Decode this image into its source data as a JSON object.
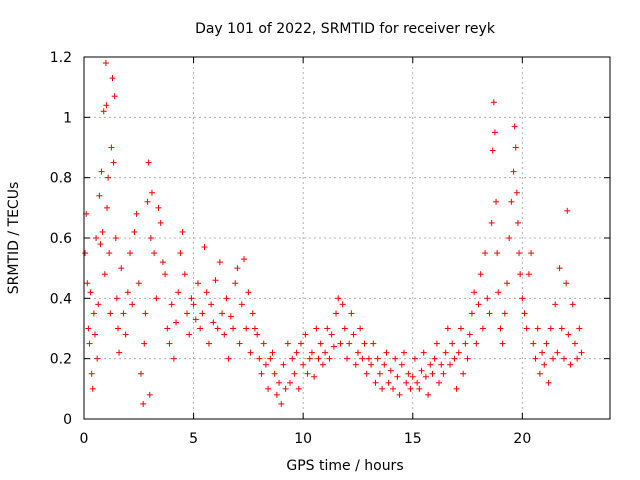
{
  "chart_data": {
    "type": "scatter",
    "title": "Day 101 of 2022, SRMTID for receiver reyk",
    "xlabel": "GPS time / hours",
    "ylabel": "SRMTID / TECUs",
    "xlim": [
      0,
      24
    ],
    "ylim": [
      0,
      1.2
    ],
    "xticks": [
      0,
      5,
      10,
      15,
      20
    ],
    "xtick_labels": [
      "0",
      "5",
      "10",
      "15",
      "20"
    ],
    "yticks": [
      0,
      0.2,
      0.4,
      0.6,
      0.8,
      1,
      1.2
    ],
    "ytick_labels": [
      "0",
      "0.2",
      "0.4",
      "0.6",
      "0.8",
      "1",
      "1.2"
    ],
    "grid": true,
    "legend": "none",
    "series": [
      {
        "name": "SRMTID",
        "color": "#ff0000",
        "marker": "plus",
        "points": [
          [
            0.05,
            0.55
          ],
          [
            0.1,
            0.68
          ],
          [
            0.15,
            0.45
          ],
          [
            0.2,
            0.3
          ],
          [
            0.25,
            0.25
          ],
          [
            0.3,
            0.42
          ],
          [
            0.35,
            0.15
          ],
          [
            0.4,
            0.1
          ],
          [
            0.45,
            0.35
          ],
          [
            0.5,
            0.28
          ],
          [
            0.55,
            0.6
          ],
          [
            0.6,
            0.2
          ],
          [
            0.65,
            0.38
          ],
          [
            0.7,
            0.74
          ],
          [
            0.75,
            0.58
          ],
          [
            0.8,
            0.82
          ],
          [
            0.85,
            0.62
          ],
          [
            0.9,
            1.02
          ],
          [
            0.95,
            0.48
          ],
          [
            1.0,
            1.18
          ],
          [
            1.02,
            1.04
          ],
          [
            1.05,
            0.7
          ],
          [
            1.1,
            0.8
          ],
          [
            1.15,
            0.55
          ],
          [
            1.2,
            0.35
          ],
          [
            1.25,
            0.9
          ],
          [
            1.3,
            1.13
          ],
          [
            1.35,
            0.85
          ],
          [
            1.4,
            1.07
          ],
          [
            1.45,
            0.6
          ],
          [
            1.5,
            0.4
          ],
          [
            1.55,
            0.3
          ],
          [
            1.6,
            0.22
          ],
          [
            1.7,
            0.5
          ],
          [
            1.8,
            0.35
          ],
          [
            1.9,
            0.28
          ],
          [
            2.0,
            0.42
          ],
          [
            2.1,
            0.55
          ],
          [
            2.2,
            0.38
          ],
          [
            2.3,
            0.62
          ],
          [
            2.4,
            0.68
          ],
          [
            2.5,
            0.45
          ],
          [
            2.6,
            0.15
          ],
          [
            2.7,
            0.05
          ],
          [
            2.75,
            0.25
          ],
          [
            2.8,
            0.35
          ],
          [
            2.9,
            0.72
          ],
          [
            2.95,
            0.85
          ],
          [
            3.0,
            0.08
          ],
          [
            3.05,
            0.6
          ],
          [
            3.1,
            0.75
          ],
          [
            3.2,
            0.55
          ],
          [
            3.3,
            0.4
          ],
          [
            3.4,
            0.7
          ],
          [
            3.5,
            0.65
          ],
          [
            3.6,
            0.52
          ],
          [
            3.7,
            0.48
          ],
          [
            3.8,
            0.3
          ],
          [
            3.9,
            0.25
          ],
          [
            4.0,
            0.38
          ],
          [
            4.1,
            0.2
          ],
          [
            4.2,
            0.32
          ],
          [
            4.3,
            0.42
          ],
          [
            4.4,
            0.55
          ],
          [
            4.5,
            0.62
          ],
          [
            4.6,
            0.48
          ],
          [
            4.7,
            0.35
          ],
          [
            4.8,
            0.28
          ],
          [
            4.9,
            0.4
          ],
          [
            5.0,
            0.38
          ],
          [
            5.1,
            0.33
          ],
          [
            5.2,
            0.45
          ],
          [
            5.3,
            0.3
          ],
          [
            5.4,
            0.35
          ],
          [
            5.5,
            0.57
          ],
          [
            5.6,
            0.42
          ],
          [
            5.7,
            0.25
          ],
          [
            5.8,
            0.38
          ],
          [
            5.9,
            0.32
          ],
          [
            6.0,
            0.46
          ],
          [
            6.1,
            0.3
          ],
          [
            6.2,
            0.52
          ],
          [
            6.3,
            0.35
          ],
          [
            6.4,
            0.28
          ],
          [
            6.5,
            0.4
          ],
          [
            6.6,
            0.2
          ],
          [
            6.7,
            0.34
          ],
          [
            6.8,
            0.3
          ],
          [
            6.9,
            0.45
          ],
          [
            7.0,
            0.5
          ],
          [
            7.1,
            0.25
          ],
          [
            7.2,
            0.38
          ],
          [
            7.3,
            0.53
          ],
          [
            7.4,
            0.3
          ],
          [
            7.5,
            0.42
          ],
          [
            7.6,
            0.22
          ],
          [
            7.7,
            0.35
          ],
          [
            7.8,
            0.3
          ],
          [
            7.9,
            0.28
          ],
          [
            8.0,
            0.2
          ],
          [
            8.1,
            0.15
          ],
          [
            8.2,
            0.25
          ],
          [
            8.3,
            0.18
          ],
          [
            8.4,
            0.1
          ],
          [
            8.5,
            0.2
          ],
          [
            8.6,
            0.22
          ],
          [
            8.7,
            0.15
          ],
          [
            8.8,
            0.08
          ],
          [
            8.9,
            0.12
          ],
          [
            9.0,
            0.05
          ],
          [
            9.1,
            0.18
          ],
          [
            9.2,
            0.1
          ],
          [
            9.3,
            0.25
          ],
          [
            9.4,
            0.12
          ],
          [
            9.5,
            0.2
          ],
          [
            9.6,
            0.15
          ],
          [
            9.7,
            0.22
          ],
          [
            9.8,
            0.1
          ],
          [
            9.9,
            0.25
          ],
          [
            10.0,
            0.18
          ],
          [
            10.1,
            0.28
          ],
          [
            10.2,
            0.15
          ],
          [
            10.3,
            0.2
          ],
          [
            10.4,
            0.22
          ],
          [
            10.5,
            0.14
          ],
          [
            10.6,
            0.3
          ],
          [
            10.7,
            0.2
          ],
          [
            10.8,
            0.25
          ],
          [
            10.9,
            0.18
          ],
          [
            11.0,
            0.22
          ],
          [
            11.1,
            0.3
          ],
          [
            11.2,
            0.2
          ],
          [
            11.3,
            0.28
          ],
          [
            11.4,
            0.24
          ],
          [
            11.5,
            0.35
          ],
          [
            11.6,
            0.4
          ],
          [
            11.7,
            0.25
          ],
          [
            11.8,
            0.38
          ],
          [
            11.9,
            0.3
          ],
          [
            12.0,
            0.2
          ],
          [
            12.1,
            0.25
          ],
          [
            12.2,
            0.35
          ],
          [
            12.3,
            0.28
          ],
          [
            12.4,
            0.18
          ],
          [
            12.5,
            0.22
          ],
          [
            12.6,
            0.3
          ],
          [
            12.7,
            0.2
          ],
          [
            12.8,
            0.25
          ],
          [
            12.9,
            0.15
          ],
          [
            13.0,
            0.2
          ],
          [
            13.1,
            0.18
          ],
          [
            13.2,
            0.25
          ],
          [
            13.3,
            0.12
          ],
          [
            13.4,
            0.2
          ],
          [
            13.5,
            0.15
          ],
          [
            13.6,
            0.1
          ],
          [
            13.7,
            0.18
          ],
          [
            13.8,
            0.22
          ],
          [
            13.9,
            0.12
          ],
          [
            14.0,
            0.16
          ],
          [
            14.1,
            0.1
          ],
          [
            14.2,
            0.2
          ],
          [
            14.3,
            0.14
          ],
          [
            14.4,
            0.08
          ],
          [
            14.5,
            0.18
          ],
          [
            14.6,
            0.22
          ],
          [
            14.7,
            0.12
          ],
          [
            14.8,
            0.15
          ],
          [
            14.9,
            0.1
          ],
          [
            15.0,
            0.14
          ],
          [
            15.1,
            0.2
          ],
          [
            15.2,
            0.12
          ],
          [
            15.3,
            0.1
          ],
          [
            15.4,
            0.16
          ],
          [
            15.5,
            0.22
          ],
          [
            15.6,
            0.14
          ],
          [
            15.7,
            0.08
          ],
          [
            15.8,
            0.18
          ],
          [
            15.9,
            0.15
          ],
          [
            16.0,
            0.2
          ],
          [
            16.1,
            0.25
          ],
          [
            16.2,
            0.12
          ],
          [
            16.3,
            0.18
          ],
          [
            16.4,
            0.15
          ],
          [
            16.5,
            0.22
          ],
          [
            16.6,
            0.3
          ],
          [
            16.7,
            0.18
          ],
          [
            16.8,
            0.25
          ],
          [
            16.9,
            0.2
          ],
          [
            17.0,
            0.1
          ],
          [
            17.1,
            0.22
          ],
          [
            17.2,
            0.3
          ],
          [
            17.3,
            0.15
          ],
          [
            17.4,
            0.25
          ],
          [
            17.5,
            0.2
          ],
          [
            17.6,
            0.28
          ],
          [
            17.7,
            0.35
          ],
          [
            17.8,
            0.42
          ],
          [
            17.9,
            0.25
          ],
          [
            18.0,
            0.38
          ],
          [
            18.1,
            0.48
          ],
          [
            18.2,
            0.3
          ],
          [
            18.3,
            0.55
          ],
          [
            18.4,
            0.4
          ],
          [
            18.5,
            0.35
          ],
          [
            18.6,
            0.65
          ],
          [
            18.65,
            0.89
          ],
          [
            18.7,
            1.05
          ],
          [
            18.75,
            0.95
          ],
          [
            18.8,
            0.72
          ],
          [
            18.85,
            0.55
          ],
          [
            18.9,
            0.42
          ],
          [
            19.0,
            0.3
          ],
          [
            19.1,
            0.25
          ],
          [
            19.2,
            0.35
          ],
          [
            19.3,
            0.45
          ],
          [
            19.4,
            0.6
          ],
          [
            19.5,
            0.72
          ],
          [
            19.6,
            0.82
          ],
          [
            19.65,
            0.97
          ],
          [
            19.7,
            0.9
          ],
          [
            19.75,
            0.75
          ],
          [
            19.8,
            0.65
          ],
          [
            19.85,
            0.55
          ],
          [
            19.9,
            0.48
          ],
          [
            20.0,
            0.4
          ],
          [
            20.1,
            0.35
          ],
          [
            20.2,
            0.3
          ],
          [
            20.3,
            0.48
          ],
          [
            20.4,
            0.55
          ],
          [
            20.5,
            0.25
          ],
          [
            20.6,
            0.2
          ],
          [
            20.7,
            0.3
          ],
          [
            20.8,
            0.15
          ],
          [
            20.9,
            0.22
          ],
          [
            21.0,
            0.18
          ],
          [
            21.1,
            0.25
          ],
          [
            21.2,
            0.12
          ],
          [
            21.3,
            0.3
          ],
          [
            21.4,
            0.2
          ],
          [
            21.5,
            0.38
          ],
          [
            21.6,
            0.22
          ],
          [
            21.7,
            0.5
          ],
          [
            21.8,
            0.3
          ],
          [
            21.9,
            0.2
          ],
          [
            22.0,
            0.45
          ],
          [
            22.05,
            0.69
          ],
          [
            22.1,
            0.28
          ],
          [
            22.2,
            0.18
          ],
          [
            22.3,
            0.38
          ],
          [
            22.4,
            0.25
          ],
          [
            22.5,
            0.2
          ],
          [
            22.6,
            0.3
          ],
          [
            22.7,
            0.22
          ]
        ]
      }
    ]
  }
}
